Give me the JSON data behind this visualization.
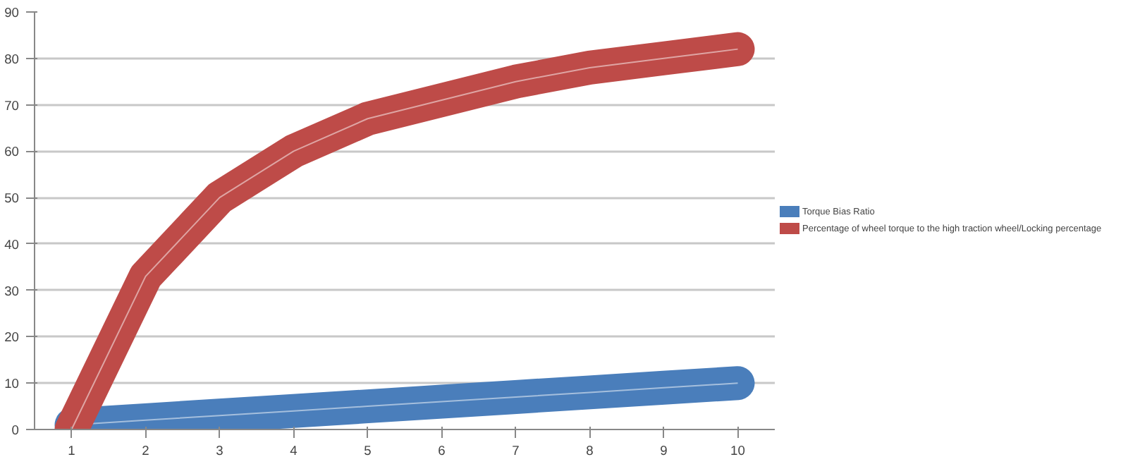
{
  "chart_data": {
    "type": "line",
    "categories": [
      "1",
      "2",
      "3",
      "4",
      "5",
      "6",
      "7",
      "8",
      "9",
      "10"
    ],
    "series": [
      {
        "name": "Torque Bias Ratio",
        "color": "#4a7ebb",
        "values": [
          1,
          2,
          3,
          4,
          5,
          6,
          7,
          8,
          9,
          10
        ]
      },
      {
        "name": "Percentage of wheel torque to the high traction wheel/Locking percentage",
        "color": "#be4b48",
        "values": [
          0,
          33,
          50,
          60,
          67,
          71,
          75,
          78,
          80,
          82
        ]
      }
    ],
    "ylim": [
      0,
      90
    ],
    "yticks": [
      0,
      10,
      20,
      30,
      40,
      50,
      60,
      70,
      80,
      90
    ],
    "grid": "y",
    "legend": "right",
    "marker": "none",
    "line_style": "solid"
  }
}
